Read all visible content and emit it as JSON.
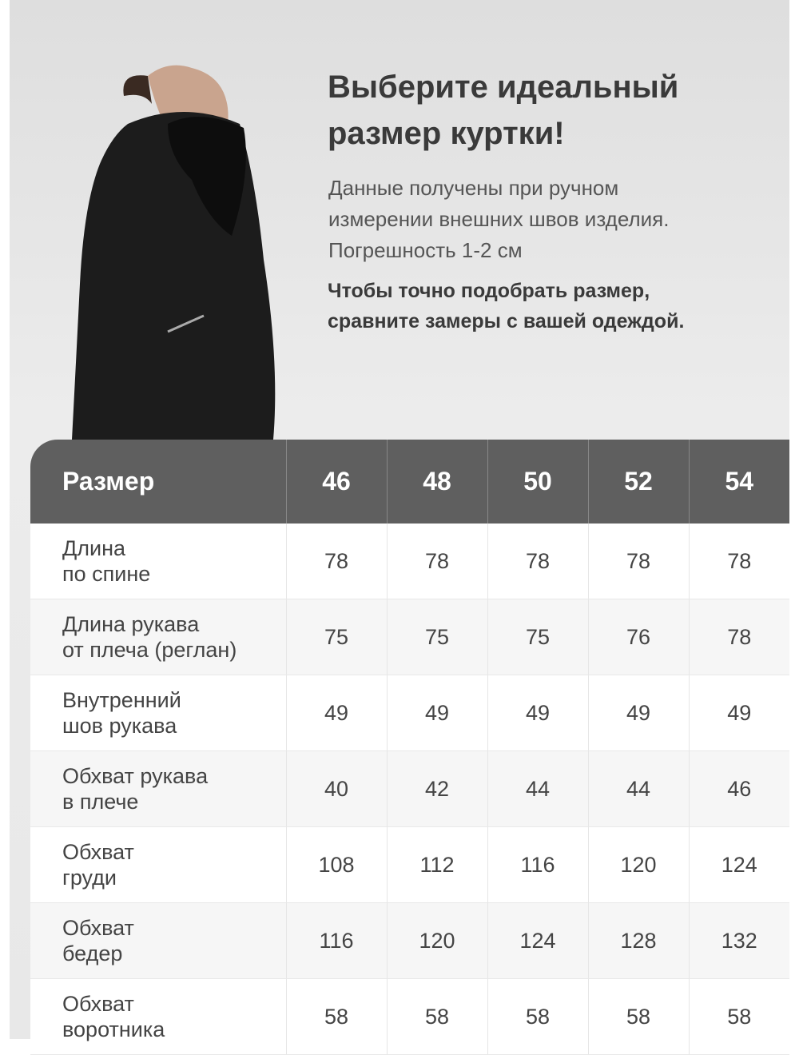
{
  "heading": {
    "line1": "Выберите идеальный",
    "line2": "размер куртки!"
  },
  "description": {
    "line1": "Данные получены при ручном",
    "line2": "измерении внешних швов изделия.",
    "line3": "Погрешность 1-2 см"
  },
  "note": {
    "line1": "Чтобы точно подобрать размер,",
    "line2": "сравните замеры с вашей одеждой."
  },
  "colors": {
    "header_bg": "#5f5f5f",
    "text": "#3a3a3a",
    "row_alt": "#f6f6f6"
  },
  "table": {
    "header_label": "Размер",
    "sizes": [
      "46",
      "48",
      "50",
      "52",
      "54"
    ],
    "rows": [
      {
        "label1": "Длина",
        "label2": "по спине",
        "values": [
          "78",
          "78",
          "78",
          "78",
          "78"
        ]
      },
      {
        "label1": "Длина рукава",
        "label2": "от плеча (реглан)",
        "values": [
          "75",
          "75",
          "75",
          "76",
          "78"
        ]
      },
      {
        "label1": "Внутренний",
        "label2": "шов рукава",
        "values": [
          "49",
          "49",
          "49",
          "49",
          "49"
        ]
      },
      {
        "label1": "Обхват рукава",
        "label2": "в плече",
        "values": [
          "40",
          "42",
          "44",
          "44",
          "46"
        ]
      },
      {
        "label1": "Обхват",
        "label2": "груди",
        "values": [
          "108",
          "112",
          "116",
          "120",
          "124"
        ]
      },
      {
        "label1": "Обхват",
        "label2": "бедер",
        "values": [
          "116",
          "120",
          "124",
          "128",
          "132"
        ]
      },
      {
        "label1": "Обхват",
        "label2": "воротника",
        "values": [
          "58",
          "58",
          "58",
          "58",
          "58"
        ]
      }
    ]
  }
}
